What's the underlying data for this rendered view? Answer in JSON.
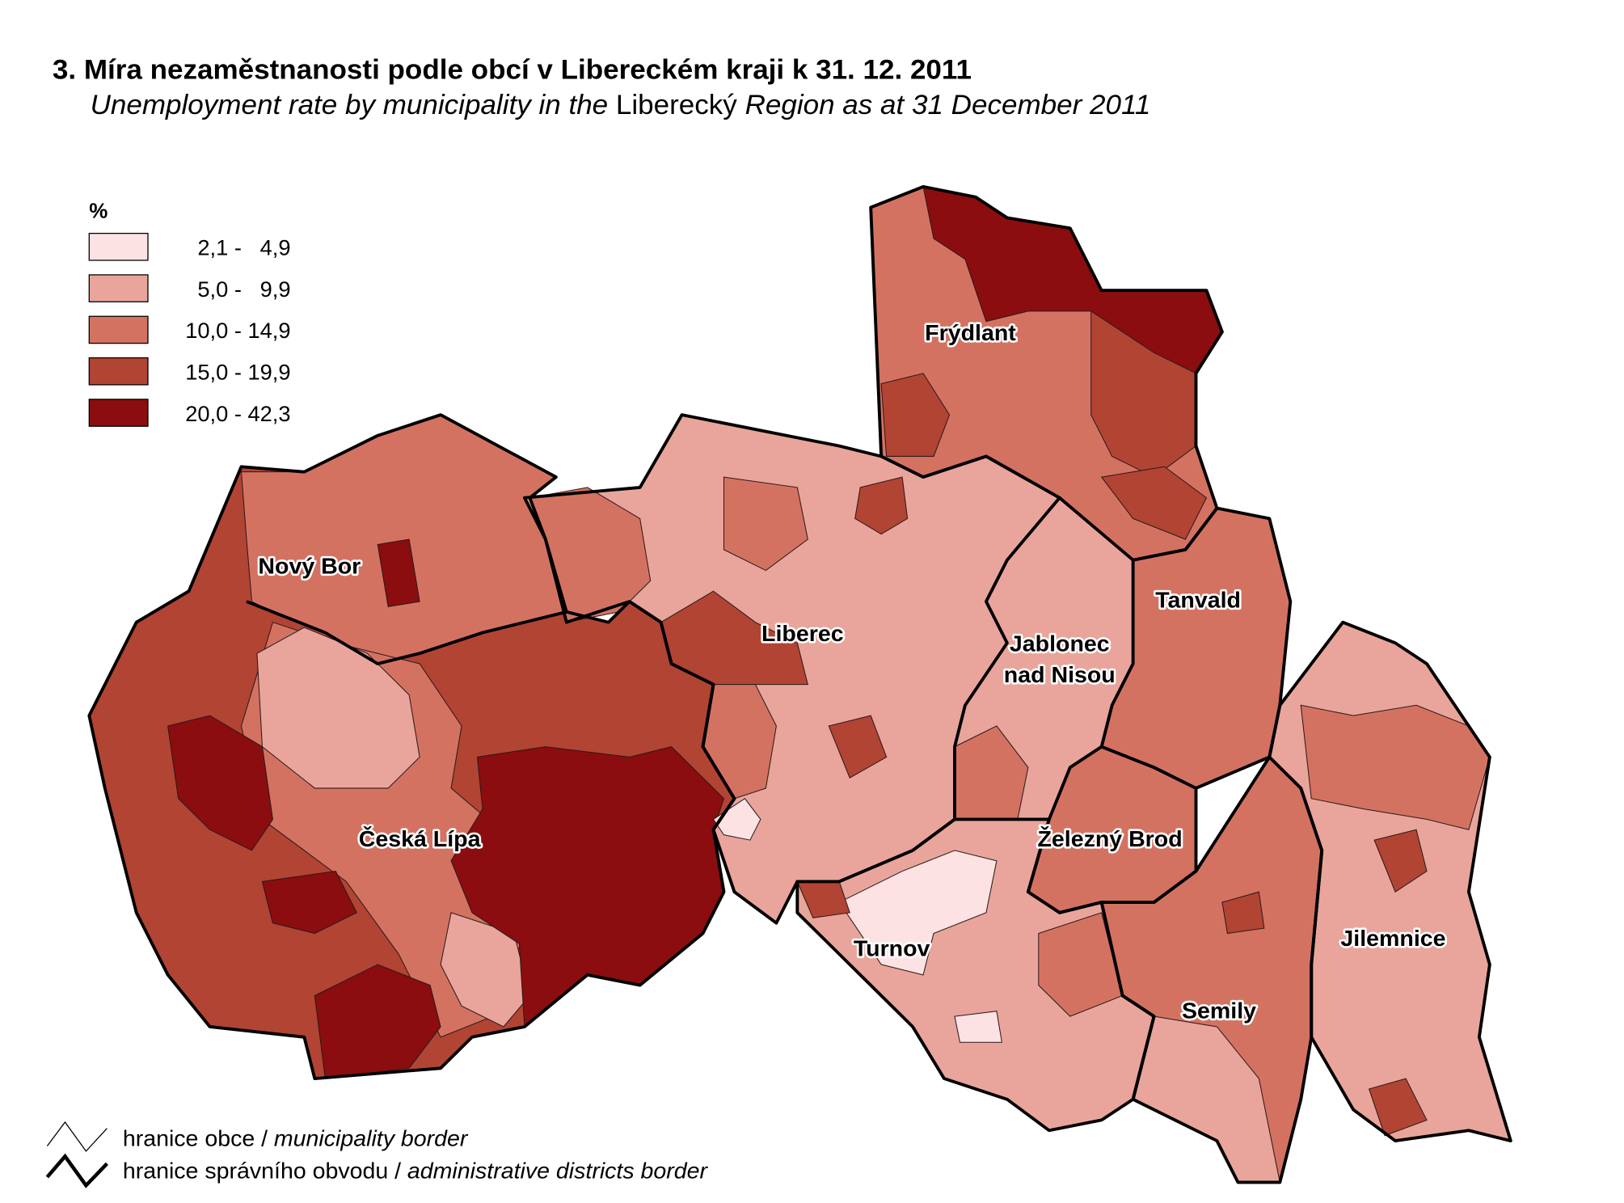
{
  "header": {
    "title": "3. Míra nezaměstnanosti podle obcí v Libereckém kraji k 31. 12. 2011",
    "subtitle": [
      "Unemployment rate by municipality in the ",
      "Liberecký",
      " Region as at 31 December 2011"
    ]
  },
  "legend": {
    "unit": "%",
    "classes": [
      {
        "label": "2,1 -   4,9",
        "color": "#fde2e4"
      },
      {
        "label": "5,0 -   9,9",
        "color": "#e9a59b"
      },
      {
        "label": "10,0 - 14,9",
        "color": "#d47262"
      },
      {
        "label": "15,0 - 19,9",
        "color": "#b24434"
      },
      {
        "label": "20,0 - 42,3",
        "color": "#8b0d0f"
      }
    ]
  },
  "districts": [
    {
      "label": [
        "Frýdlant"
      ]
    },
    {
      "label": [
        "Nový Bor"
      ]
    },
    {
      "label": [
        "Liberec"
      ]
    },
    {
      "label": [
        "Tanvald"
      ]
    },
    {
      "label": [
        "Jablonec",
        "nad Nisou"
      ]
    },
    {
      "label": [
        "Česká Lípa"
      ]
    },
    {
      "label": [
        "Železný Brod"
      ]
    },
    {
      "label": [
        "Turnov"
      ]
    },
    {
      "label": [
        "Jilemnice"
      ]
    },
    {
      "label": [
        "Semily"
      ]
    }
  ],
  "border_legend": [
    {
      "czech": "hranice obce /",
      "english": "municipality border"
    },
    {
      "czech": "hranice správního obvodu /",
      "english": "administrative districts border"
    }
  ]
}
